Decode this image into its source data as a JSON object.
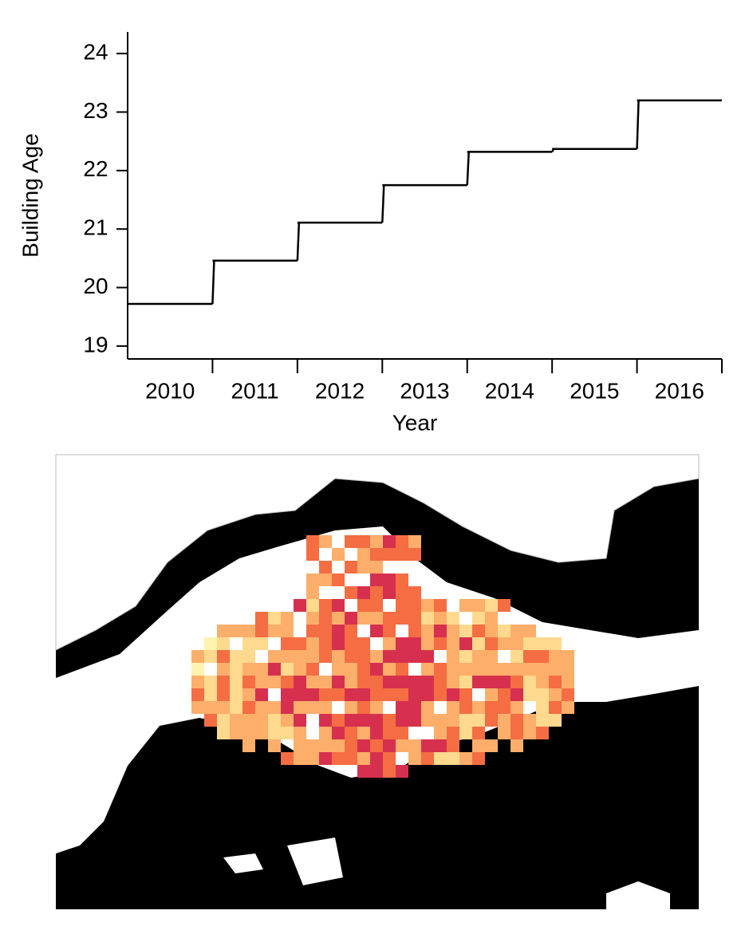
{
  "chart_data": {
    "type": "step",
    "x_label": "Year",
    "y_label": "Building Age",
    "categories": [
      "2010",
      "2011",
      "2012",
      "2013",
      "2014",
      "2015",
      "2016"
    ],
    "values": [
      19.72,
      20.46,
      21.11,
      21.75,
      22.32,
      22.37,
      23.2
    ],
    "color": "#000000",
    "ylim": [
      18.78,
      24.37
    ],
    "yticks": [
      19,
      20,
      21,
      22,
      23,
      24
    ],
    "grid": false
  }
}
